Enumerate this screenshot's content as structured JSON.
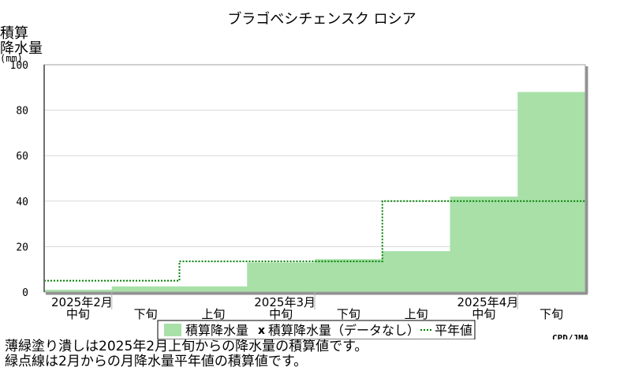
{
  "chart_data": {
    "type": "area",
    "title": "ブラゴベシチェンスク ロシア",
    "ylabel": [
      "積算",
      "降水量",
      "(mm)"
    ],
    "ylim": [
      0,
      100
    ],
    "yticks": [
      0,
      20,
      40,
      60,
      80,
      100
    ],
    "grid": true,
    "decades": [
      "中旬",
      "下旬",
      "上旬",
      "中旬",
      "下旬",
      "上旬",
      "中旬",
      "下旬"
    ],
    "months": [
      "2025年2月",
      "2025年3月",
      "2025年4月"
    ],
    "series": [
      {
        "name": "積算降水量",
        "kind": "filled-step",
        "color": "#a8e0a8",
        "values": [
          1,
          2.5,
          2.5,
          13,
          14.5,
          18,
          42,
          88
        ]
      },
      {
        "name": "平年値",
        "kind": "dotted-step",
        "color": "#008000",
        "values": [
          5,
          5,
          13.5,
          13.5,
          13.5,
          40,
          40,
          40
        ]
      }
    ],
    "legend": {
      "position": "bottom",
      "items": [
        {
          "symbol": "box",
          "label": "積算降水量"
        },
        {
          "symbol": "x",
          "label": "積算降水量（データなし）"
        },
        {
          "symbol": "dotted-line",
          "label": "平年値"
        }
      ]
    },
    "credit": "CPD/JMA"
  },
  "notes": [
    "薄緑塗り潰しは2025年2月上旬からの降水量の積算値です。",
    "緑点線は2月からの月降水量平年値の積算値です。"
  ]
}
